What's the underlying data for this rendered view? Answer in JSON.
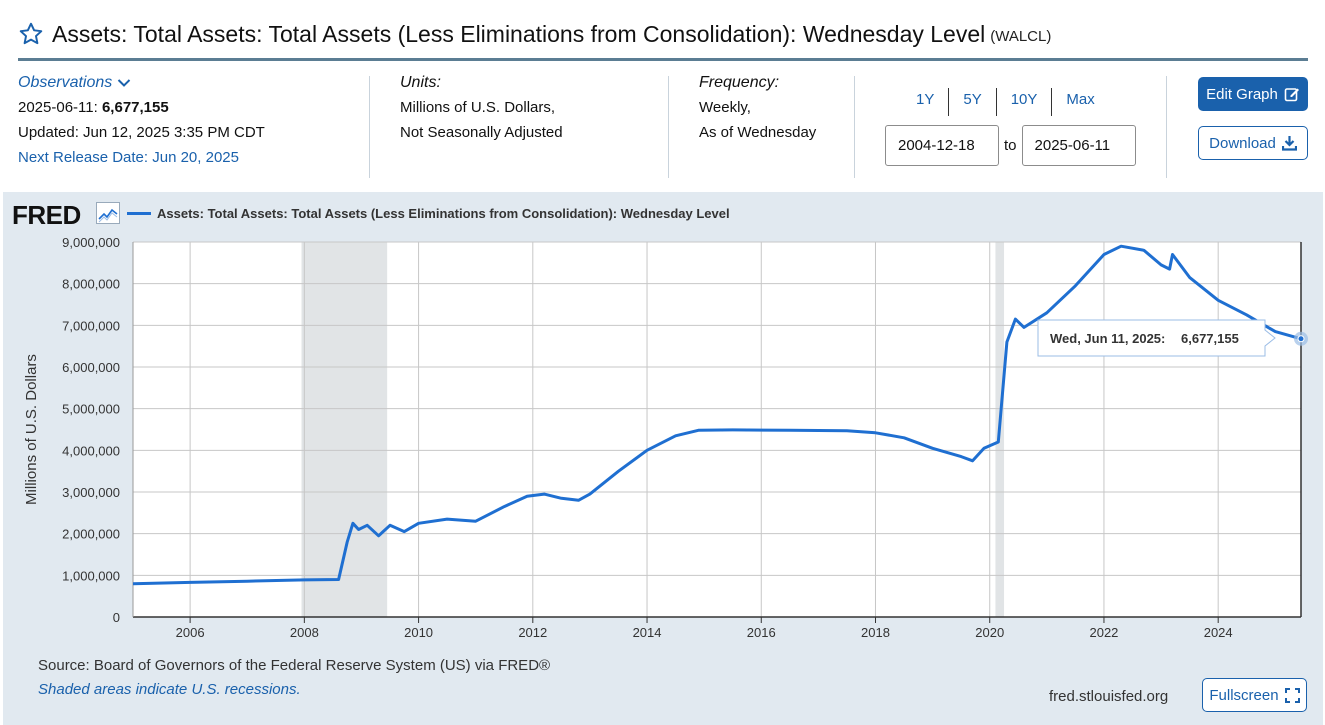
{
  "header": {
    "title": "Assets: Total Assets: Total Assets (Less Eliminations from Consolidation): Wednesday Level",
    "series_id": "(WALCL)"
  },
  "observations": {
    "label": "Observations",
    "date": "2025-06-11:",
    "value": "6,677,155",
    "updated": "Updated: Jun 12, 2025 3:35 PM CDT",
    "next_release": "Next Release Date: Jun 20, 2025"
  },
  "units": {
    "label": "Units:",
    "line1": "Millions of U.S. Dollars,",
    "line2": "Not Seasonally Adjusted"
  },
  "frequency": {
    "label": "Frequency:",
    "line1": "Weekly,",
    "line2": "As of Wednesday"
  },
  "ranges": [
    "1Y",
    "5Y",
    "10Y",
    "Max"
  ],
  "dates": {
    "start": "2004-12-18",
    "to_label": "to",
    "end": "2025-06-11"
  },
  "buttons": {
    "edit": "Edit Graph",
    "download": "Download",
    "fullscreen": "Fullscreen"
  },
  "chart": {
    "logo": "FRED",
    "source": "Source: Board of Governors of the Federal Reserve System (US) via FRED®",
    "shaded_note": "Shaded areas indicate U.S. recessions.",
    "site": "fred.stlouisfed.org",
    "tooltip_date": "Wed, Jun 11, 2025:",
    "tooltip_value": "6,677,155"
  },
  "colors": {
    "accent": "#1a61ac",
    "line": "#1f6fd1",
    "panel_bg": "#e1e9f0",
    "recession": "#c8cdd1"
  },
  "icons": {
    "favorite": "star-icon",
    "observations": "chevron-down-icon",
    "edit": "edit-icon",
    "download": "download-icon",
    "fullscreen": "fullscreen-icon",
    "logo": "line-chart-icon"
  },
  "chart_data": {
    "type": "line",
    "title": "",
    "xlabel": "",
    "ylabel": "Millions of U.S. Dollars",
    "ylim": [
      0,
      9000000
    ],
    "xlim": [
      2005.0,
      2025.45
    ],
    "yticks": [
      0,
      1000000,
      2000000,
      3000000,
      4000000,
      5000000,
      6000000,
      7000000,
      8000000,
      9000000
    ],
    "ytick_labels": [
      "0",
      "1,000,000",
      "2,000,000",
      "3,000,000",
      "4,000,000",
      "5,000,000",
      "6,000,000",
      "7,000,000",
      "8,000,000",
      "9,000,000"
    ],
    "xticks": [
      2006,
      2008,
      2010,
      2012,
      2014,
      2016,
      2018,
      2020,
      2022,
      2024
    ],
    "xtick_labels": [
      "2006",
      "2008",
      "2010",
      "2012",
      "2014",
      "2016",
      "2018",
      "2020",
      "2022",
      "2024"
    ],
    "grid": true,
    "legend": "top-left",
    "recessions": [
      [
        2007.95,
        2009.45
      ],
      [
        2020.1,
        2020.25
      ]
    ],
    "series": [
      {
        "name": "Assets: Total Assets: Total Assets (Less Eliminations from Consolidation): Wednesday Level",
        "x": [
          2005.0,
          2006.0,
          2007.0,
          2008.0,
          2008.6,
          2008.75,
          2008.85,
          2008.95,
          2009.1,
          2009.3,
          2009.5,
          2009.75,
          2010.0,
          2010.5,
          2011.0,
          2011.5,
          2011.9,
          2012.2,
          2012.5,
          2012.8,
          2013.0,
          2013.5,
          2014.0,
          2014.5,
          2014.9,
          2015.5,
          2016.5,
          2017.5,
          2018.0,
          2018.5,
          2019.0,
          2019.5,
          2019.7,
          2019.9,
          2020.15,
          2020.3,
          2020.45,
          2020.6,
          2021.0,
          2021.5,
          2022.0,
          2022.3,
          2022.7,
          2023.0,
          2023.15,
          2023.2,
          2023.5,
          2024.0,
          2024.5,
          2025.0,
          2025.45
        ],
        "values": [
          800000,
          830000,
          860000,
          890000,
          900000,
          1800000,
          2250000,
          2100000,
          2200000,
          1950000,
          2200000,
          2050000,
          2250000,
          2350000,
          2300000,
          2650000,
          2900000,
          2950000,
          2850000,
          2800000,
          2950000,
          3500000,
          4000000,
          4350000,
          4480000,
          4490000,
          4480000,
          4470000,
          4420000,
          4300000,
          4050000,
          3850000,
          3750000,
          4050000,
          4200000,
          6600000,
          7150000,
          6950000,
          7300000,
          7950000,
          8700000,
          8900000,
          8800000,
          8450000,
          8350000,
          8700000,
          8150000,
          7600000,
          7250000,
          6850000,
          6677155
        ]
      }
    ]
  }
}
